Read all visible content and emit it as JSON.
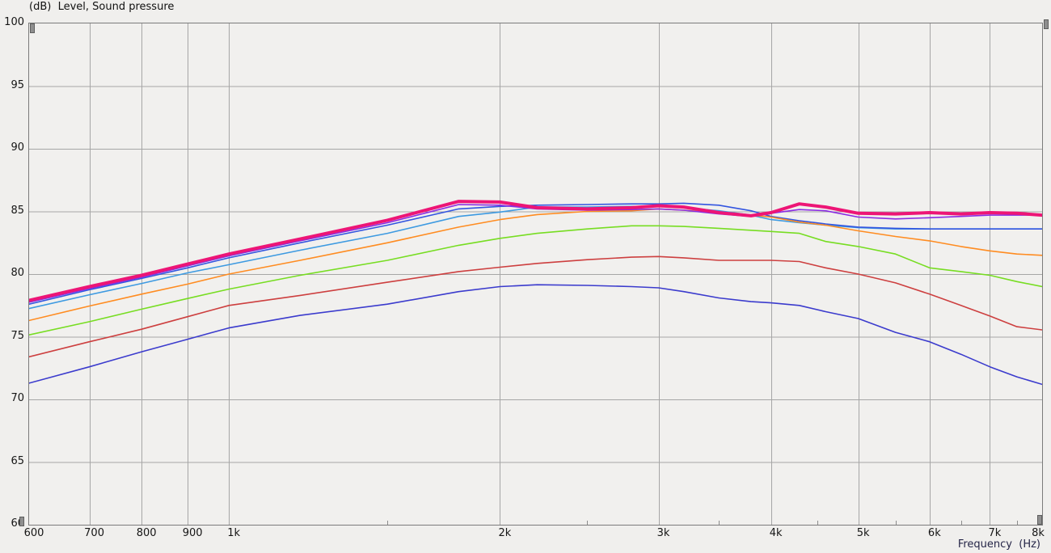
{
  "header": {
    "title": "(dB)  Level, Sound pressure"
  },
  "chart_data": {
    "type": "line",
    "title": "(dB)  Level, Sound pressure",
    "xlabel": "Frequency  (Hz)",
    "ylabel": "(dB)",
    "x_scale": "log",
    "xlim": [
      600,
      8000
    ],
    "ylim": [
      60,
      100
    ],
    "grid": true,
    "legend": "none",
    "colors": {
      "plot_background": "#f1f0ee",
      "page_background": "#f0efed",
      "grid": "#a6a6a6",
      "border": "#7b7b7b",
      "tick_text": "#161616",
      "axis_label_text": "#252547"
    },
    "y_ticks": [
      100,
      95,
      90,
      85,
      80,
      75,
      70,
      65,
      60
    ],
    "x_ticks": [
      {
        "f": 600,
        "label": "600"
      },
      {
        "f": 700,
        "label": "700"
      },
      {
        "f": 800,
        "label": "800"
      },
      {
        "f": 900,
        "label": "900"
      },
      {
        "f": 1000,
        "label": "1k"
      },
      {
        "f": 2000,
        "label": "2k"
      },
      {
        "f": 3000,
        "label": "3k"
      },
      {
        "f": 4000,
        "label": "4k"
      },
      {
        "f": 5000,
        "label": "5k"
      },
      {
        "f": 6000,
        "label": "6k"
      },
      {
        "f": 7000,
        "label": "7k"
      },
      {
        "f": 8000,
        "label": "8k"
      }
    ],
    "x_gridline_freqs": [
      700,
      800,
      900,
      1000,
      2000,
      3000,
      4000,
      5000,
      6000,
      7000
    ],
    "y_gridline_values": [
      65,
      70,
      75,
      80,
      85,
      90,
      95
    ],
    "x_minor_ticks": [
      1500,
      2500,
      3500,
      4500,
      5500,
      6500,
      7500
    ],
    "frequencies": [
      600,
      700,
      800,
      900,
      1000,
      1200,
      1500,
      1800,
      2000,
      2200,
      2500,
      2800,
      3000,
      3200,
      3500,
      3800,
      4000,
      4300,
      4600,
      5000,
      5500,
      6000,
      6500,
      7000,
      7500,
      8000
    ],
    "series": [
      {
        "name": "curve-light-blue",
        "color": "#3d9ae1",
        "width": 1.6,
        "values": [
          77.25,
          78.35,
          79.25,
          80.1,
          80.75,
          81.9,
          83.25,
          84.6,
          84.95,
          85.35,
          85.35,
          85.4,
          85.4,
          85.3,
          85.05,
          84.7,
          84.35,
          84.1,
          83.9,
          83.7,
          83.6,
          83.6,
          83.6,
          83.6,
          83.6,
          83.6
        ]
      },
      {
        "name": "curve-blue",
        "color": "#3355e0",
        "width": 1.6,
        "values": [
          77.6,
          78.75,
          79.65,
          80.5,
          81.3,
          82.5,
          83.9,
          85.2,
          85.4,
          85.5,
          85.55,
          85.6,
          85.6,
          85.65,
          85.5,
          85.05,
          84.6,
          84.25,
          84.0,
          83.75,
          83.65,
          83.6,
          83.6,
          83.6,
          83.6,
          83.6
        ]
      },
      {
        "name": "curve-orange",
        "color": "#ff8c21",
        "width": 1.6,
        "values": [
          76.3,
          77.45,
          78.4,
          79.2,
          80.0,
          81.1,
          82.5,
          83.75,
          84.35,
          84.75,
          85.0,
          85.05,
          85.2,
          85.1,
          84.9,
          84.7,
          84.55,
          84.15,
          83.9,
          83.45,
          83.0,
          82.65,
          82.2,
          81.85,
          81.6,
          81.5
        ]
      },
      {
        "name": "curve-green",
        "color": "#77dd22",
        "width": 1.6,
        "values": [
          75.15,
          76.2,
          77.2,
          78.05,
          78.8,
          79.9,
          81.1,
          82.3,
          82.85,
          83.25,
          83.6,
          83.85,
          83.85,
          83.8,
          83.65,
          83.5,
          83.4,
          83.25,
          82.6,
          82.2,
          81.6,
          80.5,
          80.2,
          79.9,
          79.4,
          79.0
        ]
      },
      {
        "name": "curve-red",
        "color": "#cd3f3f",
        "width": 1.6,
        "values": [
          73.4,
          74.6,
          75.6,
          76.6,
          77.5,
          78.3,
          79.35,
          80.2,
          80.55,
          80.85,
          81.15,
          81.35,
          81.4,
          81.3,
          81.1,
          81.1,
          81.1,
          81.0,
          80.5,
          80.0,
          79.3,
          78.4,
          77.5,
          76.65,
          75.8,
          75.55
        ]
      },
      {
        "name": "curve-dark-blue",
        "color": "#3b3bcd",
        "width": 1.6,
        "values": [
          71.3,
          72.6,
          73.8,
          74.8,
          75.7,
          76.7,
          77.6,
          78.6,
          79.0,
          79.15,
          79.1,
          79.0,
          78.9,
          78.6,
          78.1,
          77.8,
          77.7,
          77.5,
          77.0,
          76.45,
          75.35,
          74.6,
          73.6,
          72.6,
          71.8,
          71.2
        ]
      },
      {
        "name": "curve-purple",
        "color": "#8a2be2",
        "width": 1.6,
        "values": [
          77.75,
          78.85,
          79.75,
          80.65,
          81.45,
          82.65,
          84.1,
          85.55,
          85.5,
          85.2,
          85.1,
          85.15,
          85.2,
          85.1,
          84.8,
          84.6,
          84.85,
          85.15,
          85.05,
          84.55,
          84.4,
          84.5,
          84.6,
          84.7,
          84.7,
          84.7
        ]
      },
      {
        "name": "curve-magenta-thick",
        "color": "#ed1576",
        "width": 4,
        "values": [
          77.9,
          79.0,
          79.9,
          80.8,
          81.6,
          82.8,
          84.3,
          85.8,
          85.75,
          85.3,
          85.2,
          85.3,
          85.45,
          85.35,
          84.9,
          84.65,
          84.9,
          85.6,
          85.35,
          84.85,
          84.8,
          84.9,
          84.8,
          84.9,
          84.85,
          84.7
        ]
      }
    ]
  },
  "axis_end_markers": [
    {
      "pos": "top-left"
    },
    {
      "pos": "top-right"
    },
    {
      "pos": "bottom-left"
    },
    {
      "pos": "bottom-right"
    }
  ]
}
